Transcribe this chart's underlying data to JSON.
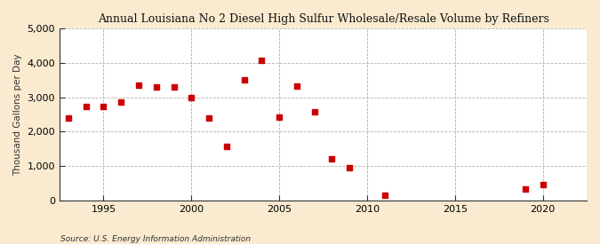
{
  "title": "Annual Louisiana No 2 Diesel High Sulfur Wholesale/Resale Volume by Refiners",
  "ylabel": "Thousand Gallons per Day",
  "source": "Source: U.S. Energy Information Administration",
  "background_color": "#faebd0",
  "plot_background_color": "#ffffff",
  "marker_color": "#cc0000",
  "xlim": [
    1992.5,
    2022.5
  ],
  "ylim": [
    0,
    5000
  ],
  "yticks": [
    0,
    1000,
    2000,
    3000,
    4000,
    5000
  ],
  "xticks": [
    1995,
    2000,
    2005,
    2010,
    2015,
    2020
  ],
  "data": [
    {
      "year": 1993,
      "value": 2390
    },
    {
      "year": 1994,
      "value": 2740
    },
    {
      "year": 1995,
      "value": 2730
    },
    {
      "year": 1996,
      "value": 2860
    },
    {
      "year": 1997,
      "value": 3340
    },
    {
      "year": 1998,
      "value": 3300
    },
    {
      "year": 1999,
      "value": 3290
    },
    {
      "year": 2000,
      "value": 2990
    },
    {
      "year": 2001,
      "value": 2390
    },
    {
      "year": 2002,
      "value": 1560
    },
    {
      "year": 2003,
      "value": 3500
    },
    {
      "year": 2004,
      "value": 4080
    },
    {
      "year": 2005,
      "value": 2430
    },
    {
      "year": 2006,
      "value": 3320
    },
    {
      "year": 2007,
      "value": 2580
    },
    {
      "year": 2008,
      "value": 1220
    },
    {
      "year": 2009,
      "value": 940
    },
    {
      "year": 2011,
      "value": 150
    },
    {
      "year": 2019,
      "value": 320
    },
    {
      "year": 2020,
      "value": 450
    }
  ]
}
